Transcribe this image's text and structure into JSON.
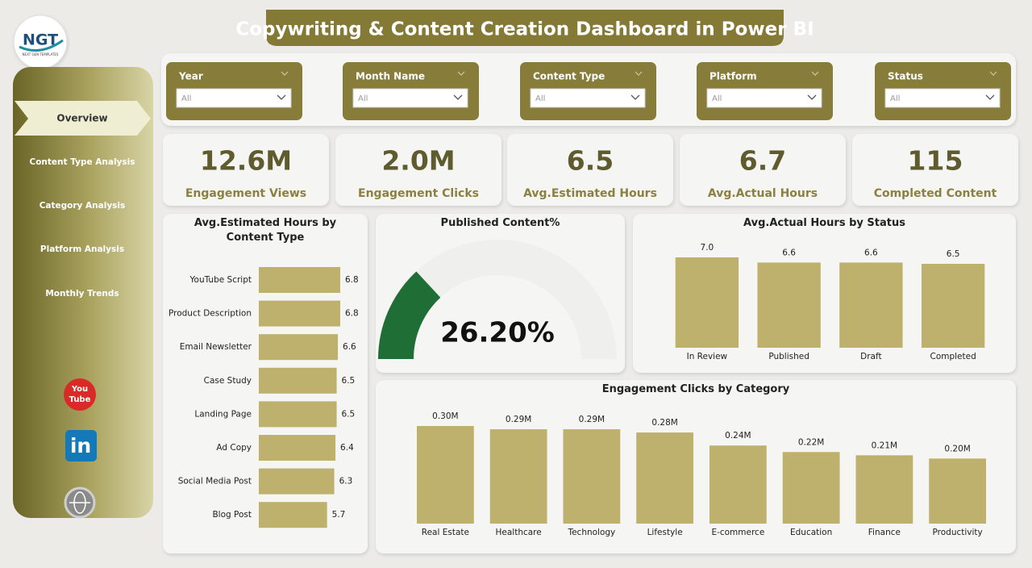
{
  "header": {
    "title": "Copywriting & Content Creation Dashboard in Power BI",
    "logo": "NGT",
    "logo_sub": "NEXT GEN TEMPLATES"
  },
  "nav": [
    "Overview",
    "Content Type Analysis",
    "Category Analysis",
    "Platform Analysis",
    "Monthly Trends"
  ],
  "icons": {
    "youtube": [
      "You",
      "Tube"
    ],
    "linkedin": "in"
  },
  "filters": [
    {
      "label": "Year",
      "value": "All"
    },
    {
      "label": "Month Name",
      "value": "All"
    },
    {
      "label": "Content Type",
      "value": "All"
    },
    {
      "label": "Platform",
      "value": "All"
    },
    {
      "label": "Status",
      "value": "All"
    }
  ],
  "kpis": [
    {
      "value": "12.6M",
      "label": "Engagement Views"
    },
    {
      "value": "2.0M",
      "label": "Engagement Clicks"
    },
    {
      "value": "6.5",
      "label": "Avg.Estimated Hours"
    },
    {
      "value": "6.7",
      "label": "Avg.Actual Hours"
    },
    {
      "value": "115",
      "label": "Completed Content"
    }
  ],
  "chart_data": [
    {
      "type": "hbar",
      "title": "Avg.Estimated Hours by Content Type",
      "categories": [
        "YouTube Script",
        "Product Description",
        "Email Newsletter",
        "Case Study",
        "Landing Page",
        "Ad Copy",
        "Social Media Post",
        "Blog Post"
      ],
      "values": [
        6.8,
        6.8,
        6.6,
        6.5,
        6.5,
        6.4,
        6.3,
        5.7
      ],
      "color": "#bdb16d"
    },
    {
      "type": "gauge",
      "title": "Published Content%",
      "values": [
        26.2
      ],
      "value_labels": [
        "26.20%"
      ],
      "ylim": [
        0,
        100
      ],
      "color": "#1f6e35"
    },
    {
      "type": "bar",
      "title": "Avg.Actual Hours by Status",
      "categories": [
        "In Review",
        "Published",
        "Draft",
        "Completed"
      ],
      "values": [
        7.0,
        6.6,
        6.6,
        6.5
      ],
      "value_labels": [
        "7.0",
        "6.6",
        "6.6",
        "6.5"
      ],
      "color": "#bdb16d"
    },
    {
      "type": "bar",
      "title": "Engagement Clicks by Category",
      "categories": [
        "Real Estate",
        "Healthcare",
        "Technology",
        "Lifestyle",
        "E-commerce",
        "Education",
        "Finance",
        "Productivity"
      ],
      "values": [
        300000,
        290000,
        290000,
        280000,
        240000,
        220000,
        210000,
        200000
      ],
      "value_labels": [
        "0.30M",
        "0.29M",
        "0.29M",
        "0.28M",
        "0.24M",
        "0.22M",
        "0.21M",
        "0.20M"
      ],
      "color": "#bdb16d"
    }
  ]
}
